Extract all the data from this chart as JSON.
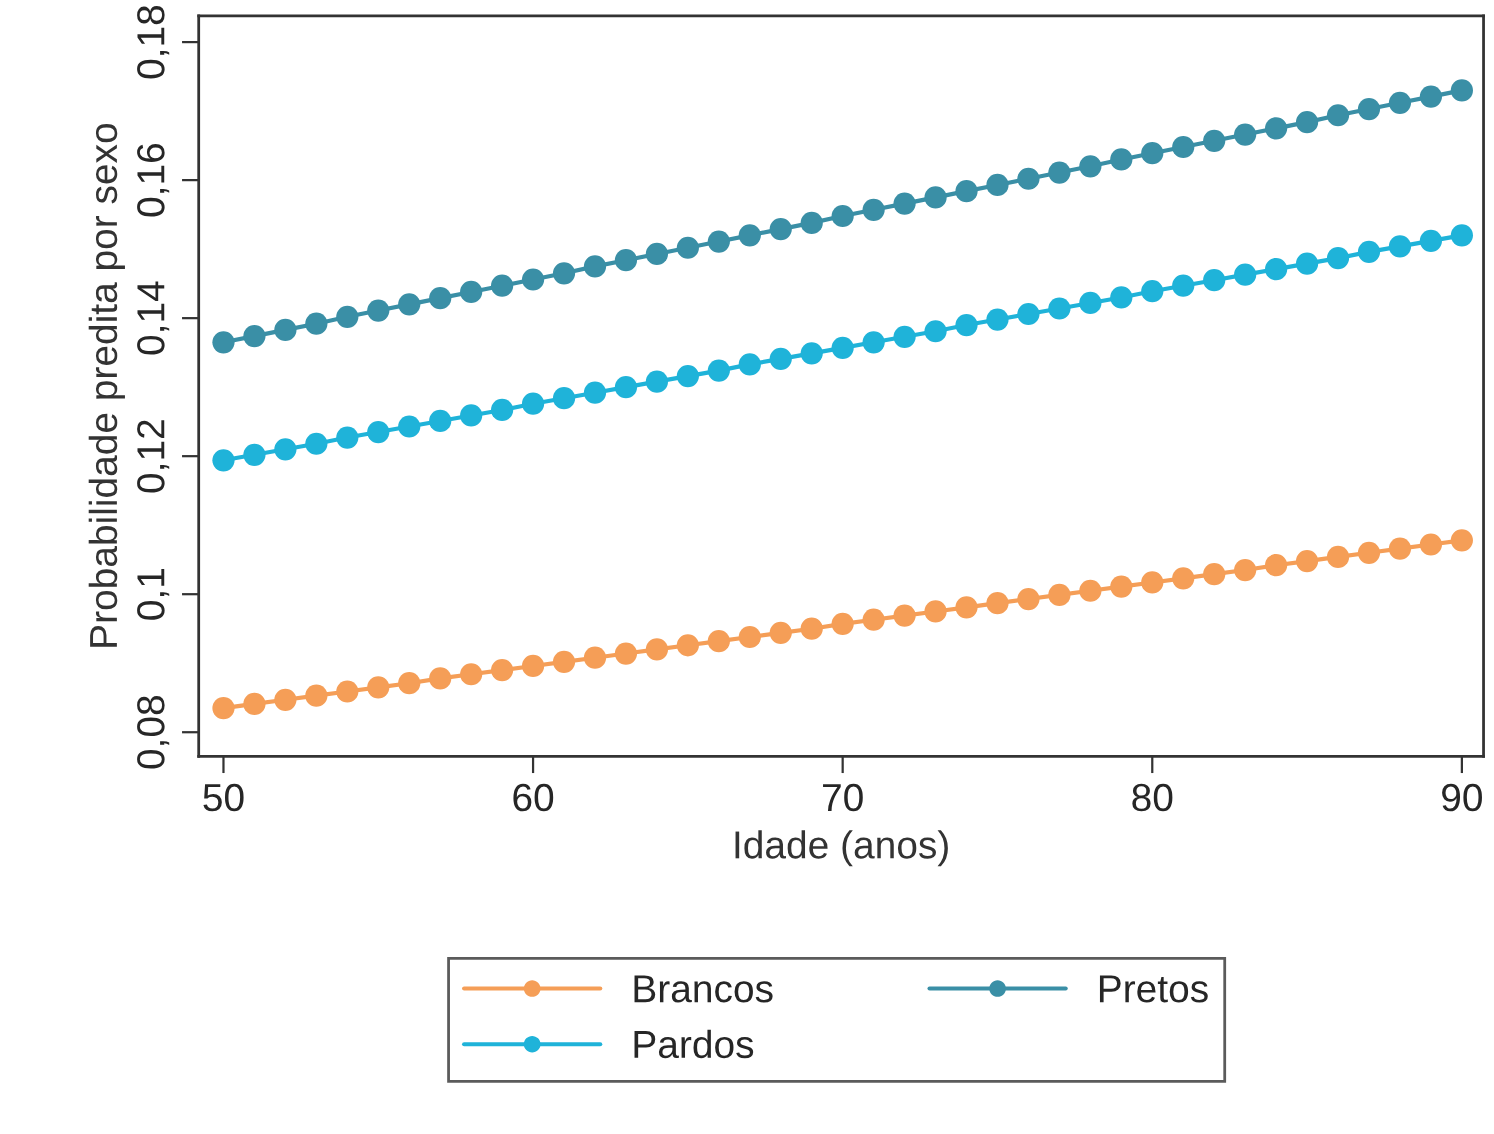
{
  "chart_data": {
    "type": "line",
    "xlabel": "Idade (anos)",
    "ylabel": "Probabilidade predita por sexo",
    "x": [
      50,
      51,
      52,
      53,
      54,
      55,
      56,
      57,
      58,
      59,
      60,
      61,
      62,
      63,
      64,
      65,
      66,
      67,
      68,
      69,
      70,
      71,
      72,
      73,
      74,
      75,
      76,
      77,
      78,
      79,
      80,
      81,
      82,
      83,
      84,
      85,
      86,
      87,
      88,
      89,
      90
    ],
    "series": [
      {
        "name": "Brancos",
        "color": "#f59e57",
        "values": [
          0.0835,
          0.0841,
          0.0847,
          0.0853,
          0.0859,
          0.0865,
          0.0871,
          0.0878,
          0.0884,
          0.089,
          0.0896,
          0.0902,
          0.0908,
          0.0914,
          0.092,
          0.0926,
          0.0932,
          0.0938,
          0.0944,
          0.095,
          0.0957,
          0.0963,
          0.0969,
          0.0975,
          0.0981,
          0.0987,
          0.0993,
          0.0999,
          0.1005,
          0.1011,
          0.1017,
          0.1023,
          0.1029,
          0.1035,
          0.1042,
          0.1048,
          0.1054,
          0.106,
          0.1066,
          0.1072,
          0.1078
        ]
      },
      {
        "name": "Pardos",
        "color": "#1fb3d9",
        "values": [
          0.1194,
          0.1202,
          0.121,
          0.1218,
          0.1227,
          0.1235,
          0.1243,
          0.1251,
          0.1259,
          0.1267,
          0.1276,
          0.1284,
          0.1292,
          0.13,
          0.1308,
          0.1316,
          0.1324,
          0.1333,
          0.1341,
          0.1349,
          0.1357,
          0.1365,
          0.1373,
          0.1381,
          0.139,
          0.1398,
          0.1406,
          0.1414,
          0.1422,
          0.143,
          0.1439,
          0.1447,
          0.1455,
          0.1463,
          0.1471,
          0.1479,
          0.1487,
          0.1496,
          0.1504,
          0.1512,
          0.152
        ]
      },
      {
        "name": "Pretos",
        "color": "#3a8fa6",
        "values": [
          0.1365,
          0.1374,
          0.1383,
          0.1392,
          0.1402,
          0.1411,
          0.142,
          0.1429,
          0.1438,
          0.1447,
          0.1456,
          0.1465,
          0.1475,
          0.1484,
          0.1493,
          0.1502,
          0.1511,
          0.152,
          0.1529,
          0.1538,
          0.1548,
          0.1557,
          0.1566,
          0.1575,
          0.1584,
          0.1593,
          0.1602,
          0.1611,
          0.162,
          0.163,
          0.1639,
          0.1648,
          0.1657,
          0.1666,
          0.1675,
          0.1684,
          0.1694,
          0.1703,
          0.1712,
          0.1721,
          0.173
        ]
      }
    ],
    "xlim": [
      49.2,
      90.7
    ],
    "ylim": [
      0.0765,
      0.1838
    ],
    "xticks": [
      50,
      60,
      70,
      80,
      90
    ],
    "yticks": [
      {
        "value": 0.08,
        "label": "0,08"
      },
      {
        "value": 0.1,
        "label": "0,1"
      },
      {
        "value": 0.12,
        "label": "0,12"
      },
      {
        "value": 0.14,
        "label": "0,14"
      },
      {
        "value": 0.16,
        "label": "0,16"
      },
      {
        "value": 0.18,
        "label": "0,18"
      }
    ],
    "grid": false,
    "legend": "bottom",
    "marker": "circle",
    "line_style": "solid"
  }
}
